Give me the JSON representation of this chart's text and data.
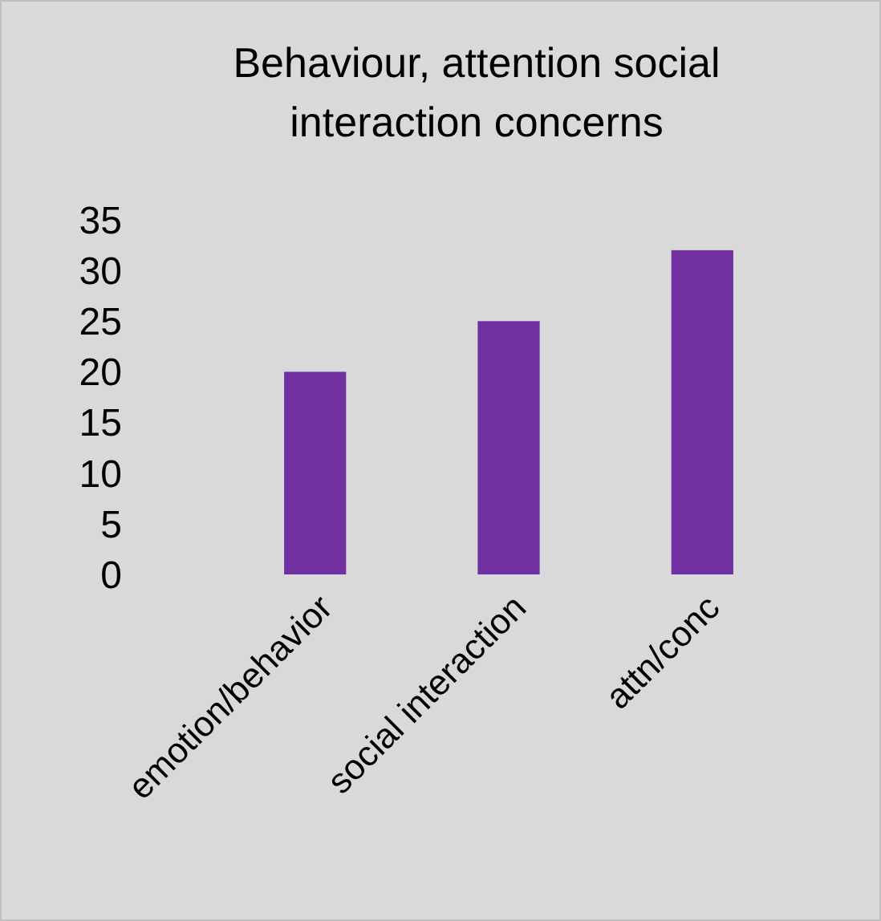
{
  "chart_data": {
    "type": "bar",
    "title": "Behaviour, attention social interaction concerns",
    "categories": [
      "emotion/behavior",
      "social interaction",
      "attn/conc"
    ],
    "values": [
      20,
      25,
      32
    ],
    "color": "#7030a0",
    "ylim": [
      0,
      35
    ],
    "yticks": [
      0,
      5,
      10,
      15,
      20,
      25,
      30,
      35
    ],
    "grid": false
  }
}
